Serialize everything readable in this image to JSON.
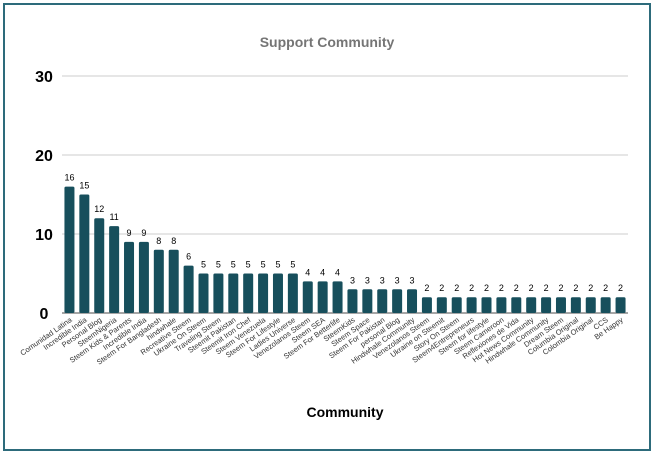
{
  "chart_data": {
    "type": "bar",
    "title": "Support Community",
    "xlabel": "Community",
    "ylabel": "",
    "ylim": [
      0,
      30
    ],
    "yticks": [
      0,
      10,
      20,
      30
    ],
    "grid": true,
    "bar_color": "#174f5c",
    "categories": [
      "Comunidad Latina",
      "Incredible India",
      "Personal Blog",
      "SteemNigeria",
      "Steem Kids & Parents",
      "Incredible India",
      "Steem For Bangladesh",
      "hindwhale",
      "Recreative Steem",
      "Ukraine On Steem",
      "Traveling Steem",
      "Steemit Pakistan",
      "Steemit Iron Chef",
      "Steem Venezuela",
      "Steem For Lifestyle",
      "Ladies Universe",
      "Venezolanos Steem",
      "Steem SEA",
      "Steem For Betterlife",
      "SteemKids",
      "Steem Space",
      "Steem For Pakistan",
      "personal Blog",
      "Hindwhale Community",
      "Venezolanos Steem",
      "Ukraine on Steemit",
      "Story On Steem",
      "Steem4Entrepreneurs",
      "Steem for lifestyle",
      "Steem Cameroon",
      "Reflexiones de Vida",
      "Hot News Community",
      "Hindwhale Community",
      "Dream Steem",
      "Columbia Original",
      "Colombia Original",
      "CCS",
      "Be Happy"
    ],
    "values": [
      16,
      15,
      12,
      11,
      9,
      9,
      8,
      8,
      6,
      5,
      5,
      5,
      5,
      5,
      5,
      5,
      4,
      4,
      4,
      3,
      3,
      3,
      3,
      3,
      2,
      2,
      2,
      2,
      2,
      2,
      2,
      2,
      2,
      2,
      2,
      2,
      2,
      2
    ]
  }
}
